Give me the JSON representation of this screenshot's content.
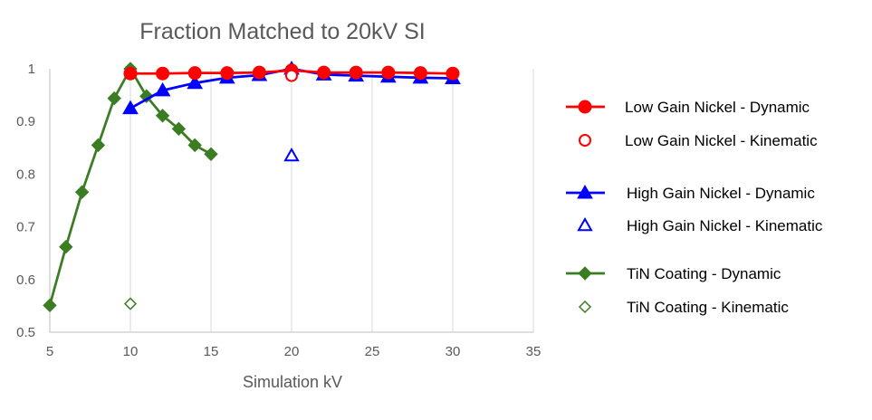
{
  "chart_data": {
    "type": "scatter",
    "title": "Fraction Matched to 20kV SI",
    "xlabel": "Simulation kV",
    "ylabel": "",
    "xlim": [
      5,
      35
    ],
    "ylim": [
      0.5,
      1
    ],
    "xticks": [
      5,
      10,
      15,
      20,
      25,
      30,
      35
    ],
    "yticks": [
      0.5,
      0.6,
      0.7,
      0.8,
      0.9,
      1
    ],
    "xtick_labels": [
      "5",
      "10",
      "15",
      "20",
      "25",
      "30",
      "35"
    ],
    "ytick_labels": [
      "0.5",
      "0.6",
      "0.7",
      "0.8",
      "0.9",
      "1"
    ],
    "grid": "vertical",
    "legend_position": "right",
    "series": [
      {
        "name": "Low Gain Nickel - Dynamic",
        "color": "#ff0000",
        "marker": "circle-filled",
        "line": true,
        "x": [
          10,
          12,
          14,
          16,
          18,
          20,
          22,
          24,
          26,
          28,
          30
        ],
        "y": [
          0.991,
          0.991,
          0.992,
          0.992,
          0.993,
          0.997,
          0.993,
          0.993,
          0.993,
          0.992,
          0.991
        ]
      },
      {
        "name": "Low Gain Nickel - Kinematic",
        "color": "#ff0000",
        "marker": "circle-open",
        "line": false,
        "x": [
          20
        ],
        "y": [
          0.987
        ]
      },
      {
        "name": "High Gain Nickel - Dynamic",
        "color": "#0000ff",
        "marker": "triangle-filled",
        "line": true,
        "x": [
          10,
          12,
          14,
          16,
          18,
          20,
          22,
          24,
          26,
          28,
          30
        ],
        "y": [
          0.925,
          0.959,
          0.973,
          0.983,
          0.988,
          1.0,
          0.989,
          0.987,
          0.985,
          0.983,
          0.982
        ]
      },
      {
        "name": "High Gain Nickel - Kinematic",
        "color": "#0000ff",
        "marker": "triangle-open",
        "line": false,
        "x": [
          20
        ],
        "y": [
          0.835
        ]
      },
      {
        "name": "TiN Coating - Dynamic",
        "color": "#3a7d22",
        "marker": "diamond-filled",
        "line": true,
        "x": [
          5,
          6,
          7,
          8,
          9,
          10,
          11,
          12,
          13,
          14,
          15
        ],
        "y": [
          0.551,
          0.662,
          0.766,
          0.855,
          0.944,
          1.0,
          0.948,
          0.911,
          0.886,
          0.855,
          0.838
        ]
      },
      {
        "name": "TiN Coating - Kinematic",
        "color": "#3a7d22",
        "marker": "diamond-open",
        "line": false,
        "x": [
          10
        ],
        "y": [
          0.554
        ]
      }
    ]
  }
}
